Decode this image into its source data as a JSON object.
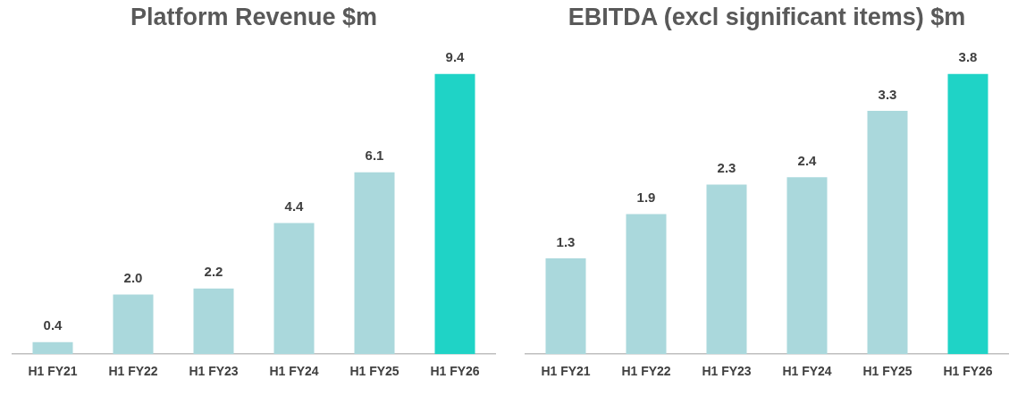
{
  "chart_data": [
    {
      "type": "bar",
      "title": "Platform Revenue $m",
      "categories": [
        "H1 FY21",
        "H1 FY22",
        "H1 FY23",
        "H1 FY24",
        "H1 FY25",
        "H1 FY26"
      ],
      "values": [
        0.4,
        2.0,
        2.2,
        4.4,
        6.1,
        9.4
      ],
      "value_labels": [
        "0.4",
        "2.0",
        "2.2",
        "4.4",
        "6.1",
        "9.4"
      ],
      "colors": [
        "#aad8dc",
        "#aad8dc",
        "#aad8dc",
        "#aad8dc",
        "#aad8dc",
        "#1fd3c6"
      ],
      "legend": false
    },
    {
      "type": "bar",
      "title": "EBITDA (excl significant items) $m",
      "categories": [
        "H1 FY21",
        "H1 FY22",
        "H1 FY23",
        "H1 FY24",
        "H1 FY25",
        "H1 FY26"
      ],
      "values": [
        1.3,
        1.9,
        2.3,
        2.4,
        3.3,
        3.8
      ],
      "value_labels": [
        "1.3",
        "1.9",
        "2.3",
        "2.4",
        "3.3",
        "3.8"
      ],
      "colors": [
        "#aad8dc",
        "#aad8dc",
        "#aad8dc",
        "#aad8dc",
        "#aad8dc",
        "#1fd3c6"
      ],
      "legend": false
    }
  ]
}
